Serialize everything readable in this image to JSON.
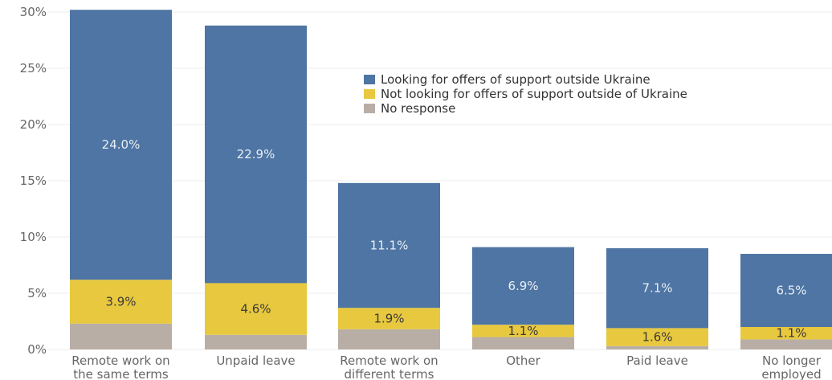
{
  "chart_data": {
    "type": "bar",
    "stacked": true,
    "categories": [
      [
        "Remote work on",
        "the same terms"
      ],
      [
        "Unpaid leave"
      ],
      [
        "Remote work on",
        "different terms"
      ],
      [
        "Other"
      ],
      [
        "Paid leave"
      ],
      [
        "No longer",
        "employed"
      ]
    ],
    "series": [
      {
        "name": "No response",
        "color": "#b9aea6",
        "values": [
          2.3,
          1.3,
          1.8,
          1.1,
          0.3,
          0.9
        ],
        "labels": [
          "",
          "",
          "",
          "",
          "",
          ""
        ]
      },
      {
        "name": "Not looking for offers of support outside of Ukraine",
        "color": "#e8c83e",
        "values": [
          3.9,
          4.6,
          1.9,
          1.1,
          1.6,
          1.1
        ],
        "labels": [
          "3.9%",
          "4.6%",
          "1.9%",
          "1.1%",
          "1.6%",
          "1.1%"
        ]
      },
      {
        "name": "Looking for offers of support outside Ukraine",
        "color": "#4e75a3",
        "values": [
          24.0,
          22.9,
          11.1,
          6.9,
          7.1,
          6.5
        ],
        "labels": [
          "24.0%",
          "22.9%",
          "11.1%",
          "6.9%",
          "7.1%",
          "6.5%"
        ]
      }
    ],
    "yticks": [
      "0%",
      "5%",
      "10%",
      "15%",
      "20%",
      "25%",
      "30%"
    ],
    "ylim": [
      0,
      30
    ],
    "legend": {
      "position": "top-right",
      "order": [
        {
          "name": "Looking for offers of support outside Ukraine",
          "color": "#4e75a3"
        },
        {
          "name": "Not looking for offers of support outside of Ukraine",
          "color": "#e8c83e"
        },
        {
          "name": "No response",
          "color": "#b9aea6"
        }
      ]
    },
    "title": "",
    "xlabel": "",
    "ylabel": ""
  }
}
